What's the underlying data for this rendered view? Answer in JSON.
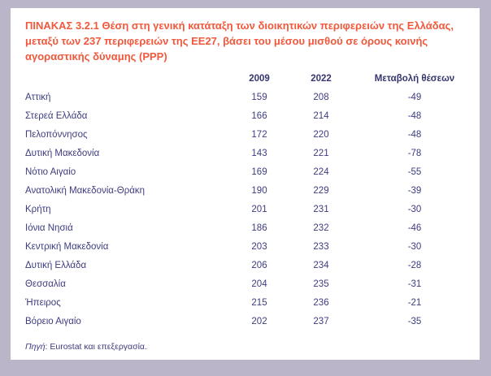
{
  "page": {
    "background_color": "#bab5c9",
    "card_background_color": "#ffffff",
    "title_color": "#f1583c",
    "text_color": "#3d3c80"
  },
  "table": {
    "title": "ΠΙΝΑΚΑΣ 3.2.1  Θέση στη γενική κατάταξη των διοικητικών περιφερειών της Ελλάδας, μεταξύ των 237 περιφερειών της ΕΕ27, βάσει του μέσου μισθού σε όρους κοινής αγοραστικής δύναμης (PPP)",
    "columns": [
      "2009",
      "2022",
      "Μεταβολή θέσεων"
    ],
    "rows": [
      {
        "region": "Αττική",
        "y2009": "159",
        "y2022": "208",
        "change": "-49"
      },
      {
        "region": "Στερεά Ελλάδα",
        "y2009": "166",
        "y2022": "214",
        "change": "-48"
      },
      {
        "region": "Πελοπόννησος",
        "y2009": "172",
        "y2022": "220",
        "change": "-48"
      },
      {
        "region": "Δυτική Μακεδονία",
        "y2009": "143",
        "y2022": "221",
        "change": "-78"
      },
      {
        "region": "Νότιο Αιγαίο",
        "y2009": "169",
        "y2022": "224",
        "change": "-55"
      },
      {
        "region": "Ανατολική Μακεδονία-Θράκη",
        "y2009": "190",
        "y2022": "229",
        "change": "-39"
      },
      {
        "region": "Κρήτη",
        "y2009": "201",
        "y2022": "231",
        "change": "-30"
      },
      {
        "region": "Ιόνια Νησιά",
        "y2009": "186",
        "y2022": "232",
        "change": "-46"
      },
      {
        "region": "Κεντρική Μακεδονία",
        "y2009": "203",
        "y2022": "233",
        "change": "-30"
      },
      {
        "region": "Δυτική Ελλάδα",
        "y2009": "206",
        "y2022": "234",
        "change": "-28"
      },
      {
        "region": "Θεσσαλία",
        "y2009": "204",
        "y2022": "235",
        "change": "-31"
      },
      {
        "region": "Ήπειρος",
        "y2009": "215",
        "y2022": "236",
        "change": "-21"
      },
      {
        "region": "Βόρειο Αιγαίο",
        "y2009": "202",
        "y2022": "237",
        "change": "-35"
      }
    ],
    "source_label": "Πηγή",
    "source_text": ": Eurostat και επεξεργασία."
  }
}
